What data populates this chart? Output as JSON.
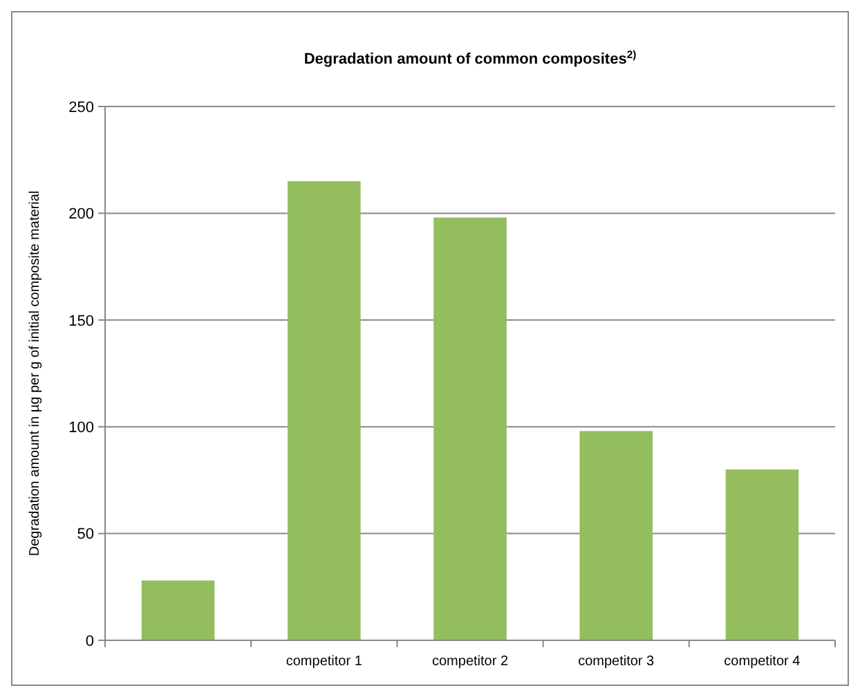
{
  "chart_data": {
    "type": "bar",
    "title": "Degradation amount of common composites$^{2)}$",
    "ylabel": "Degradation amount in µg per g of initial composite material",
    "categories": [
      null,
      "competitor 1",
      "competitor 2",
      "competitor 3",
      "competitor 4"
    ],
    "values": [
      28,
      215,
      198,
      98,
      80
    ],
    "color": "#93bd5f",
    "ylim": [
      0,
      250
    ],
    "yticks": [
      0,
      50,
      100,
      150,
      200,
      250
    ],
    "grid": "y"
  }
}
